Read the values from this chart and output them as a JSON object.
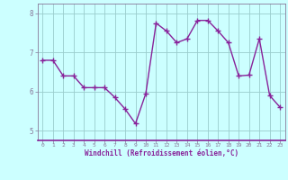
{
  "x": [
    0,
    1,
    2,
    3,
    4,
    5,
    6,
    7,
    8,
    9,
    10,
    11,
    12,
    13,
    14,
    15,
    16,
    17,
    18,
    19,
    20,
    21,
    22,
    23
  ],
  "y": [
    6.8,
    6.8,
    6.4,
    6.4,
    6.1,
    6.1,
    6.1,
    5.85,
    5.55,
    5.18,
    5.95,
    7.75,
    7.55,
    7.25,
    7.35,
    7.82,
    7.82,
    7.55,
    7.25,
    6.4,
    6.42,
    7.35,
    5.9,
    5.6
  ],
  "ylim": [
    4.75,
    8.25
  ],
  "yticks": [
    5,
    6,
    7,
    8
  ],
  "xlim": [
    -0.5,
    23.5
  ],
  "xticks": [
    0,
    1,
    2,
    3,
    4,
    5,
    6,
    7,
    8,
    9,
    10,
    11,
    12,
    13,
    14,
    15,
    16,
    17,
    18,
    19,
    20,
    21,
    22,
    23
  ],
  "xlabel": "Windchill (Refroidissement éolien,°C)",
  "line_color": "#882299",
  "marker": "+",
  "bg_color": "#ccffff",
  "plot_bg_color": "#ccffff",
  "grid_color": "#99cccc",
  "marker_size": 4,
  "line_width": 1.0,
  "axis_line_color": "#887799",
  "xlabel_color": "#882299",
  "tick_color": "#887799"
}
